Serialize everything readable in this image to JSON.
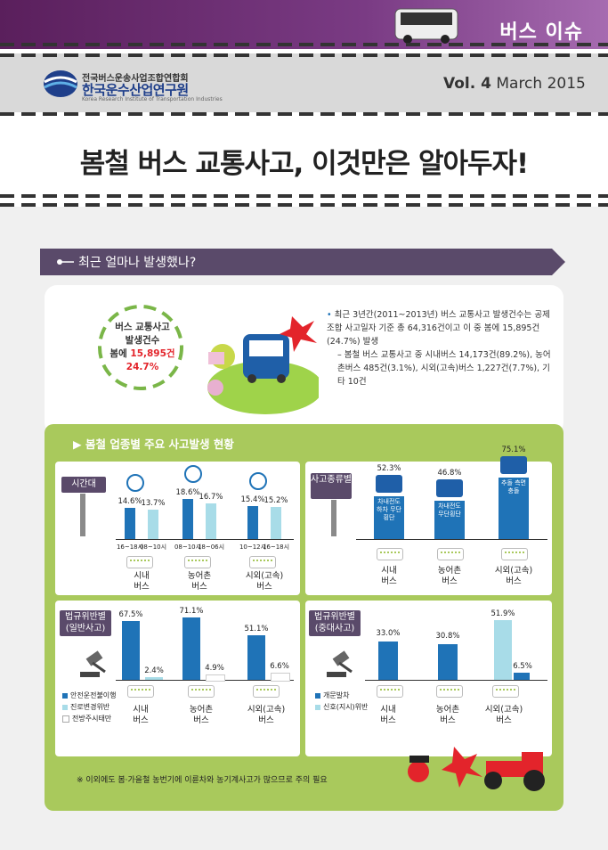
{
  "header": {
    "issue_label": "버스 이슈",
    "org_line1": "전국버스운송사업조합연합회",
    "org_line2": "한국운수산업연구원",
    "org_line3": "Korea Research Institute of Transportation Industries",
    "vol": "Vol. 4",
    "date": "March 2015"
  },
  "title": "봄철 버스 교통사고, 이것만은 알아두자!",
  "section": {
    "title": "최근 얼마나 발생했나?"
  },
  "summary": {
    "circle_line1": "버스 교통사고",
    "circle_line2": "발생건수",
    "circle_line3_prefix": "봄에",
    "circle_count": "15,895건",
    "circle_pct": "24.7%",
    "bullet1": "최근 3년간(2011~2013년) 버스 교통사고 발생건수는 공제조합 사고일자 기준 총 64,316건이고 이 중 봄에 15,895건(24.7%) 발생",
    "bullet2": "봄철 버스 교통사고 중 시내버스 14,173건(89.2%), 농어촌버스 485건(3.1%), 시외(고속)버스 1,227건(7.7%), 기타 10건"
  },
  "panel": {
    "title": "봄철 업종별 주요 사고발생 현황",
    "note": "※ 이외에도 봄·가을철 농번기에 이륜차와 농기계사고가 많으므로 주의 필요"
  },
  "chart_data": [
    {
      "type": "bar",
      "title": "시간대",
      "categories": [
        "시내버스",
        "농어촌버스",
        "시외(고속)버스"
      ],
      "series": [
        {
          "values": [
            14.6,
            18.6,
            15.4
          ],
          "periods": [
            "16~18시",
            "08~10시",
            "10~12시"
          ]
        },
        {
          "values": [
            13.7,
            16.7,
            15.2
          ],
          "periods": [
            "08~10시",
            "18~06시",
            "16~18시"
          ]
        }
      ],
      "value_labels": [
        [
          "14.6%",
          "13.7%"
        ],
        [
          "18.6%",
          "16.7%"
        ],
        [
          "15.4%",
          "15.2%"
        ]
      ]
    },
    {
      "type": "bar",
      "title": "사고종류별",
      "categories": [
        "시내버스",
        "농어촌버스",
        "시외(고속)버스"
      ],
      "values": [
        52.3,
        46.8,
        75.1
      ],
      "value_labels": [
        "52.3%",
        "46.8%",
        "75.1%"
      ],
      "bar_labels": [
        "차내전도 하차 무단횡단",
        "차내전도 무단횡단",
        "추돌 측면충돌"
      ]
    },
    {
      "type": "bar",
      "title": "법규위반별 (일반사고)",
      "categories": [
        "시내버스",
        "농어촌버스",
        "시외(고속)버스"
      ],
      "series": [
        {
          "name": "안전운전불이행",
          "values": [
            67.5,
            71.1,
            51.1
          ]
        },
        {
          "name": "진로변경위반",
          "values": [
            2.4,
            0,
            0
          ]
        },
        {
          "name": "전방주시태만",
          "values": [
            0,
            4.9,
            6.6
          ]
        }
      ],
      "value_labels": [
        [
          "67.5%",
          "2.4%"
        ],
        [
          "71.1%",
          "4.9%"
        ],
        [
          "51.1%",
          "6.6%"
        ]
      ]
    },
    {
      "type": "bar",
      "title": "법규위반별 (중대사고)",
      "categories": [
        "시내버스",
        "농어촌버스",
        "시외(고속)버스"
      ],
      "series": [
        {
          "name": "개문발차",
          "values": [
            33.0,
            30.8,
            6.5
          ]
        },
        {
          "name": "신호(지시)위반",
          "values": [
            0,
            0,
            51.9
          ]
        }
      ],
      "value_labels": [
        [
          "33.0%"
        ],
        [
          "30.8%"
        ],
        [
          "51.9%",
          "6.5%"
        ]
      ]
    }
  ],
  "colors": {
    "dark_bar": "#1f73b7",
    "light_bar": "#a8dce8",
    "panel_green": "#a9c95c",
    "header_purple": "#6a2c70"
  }
}
